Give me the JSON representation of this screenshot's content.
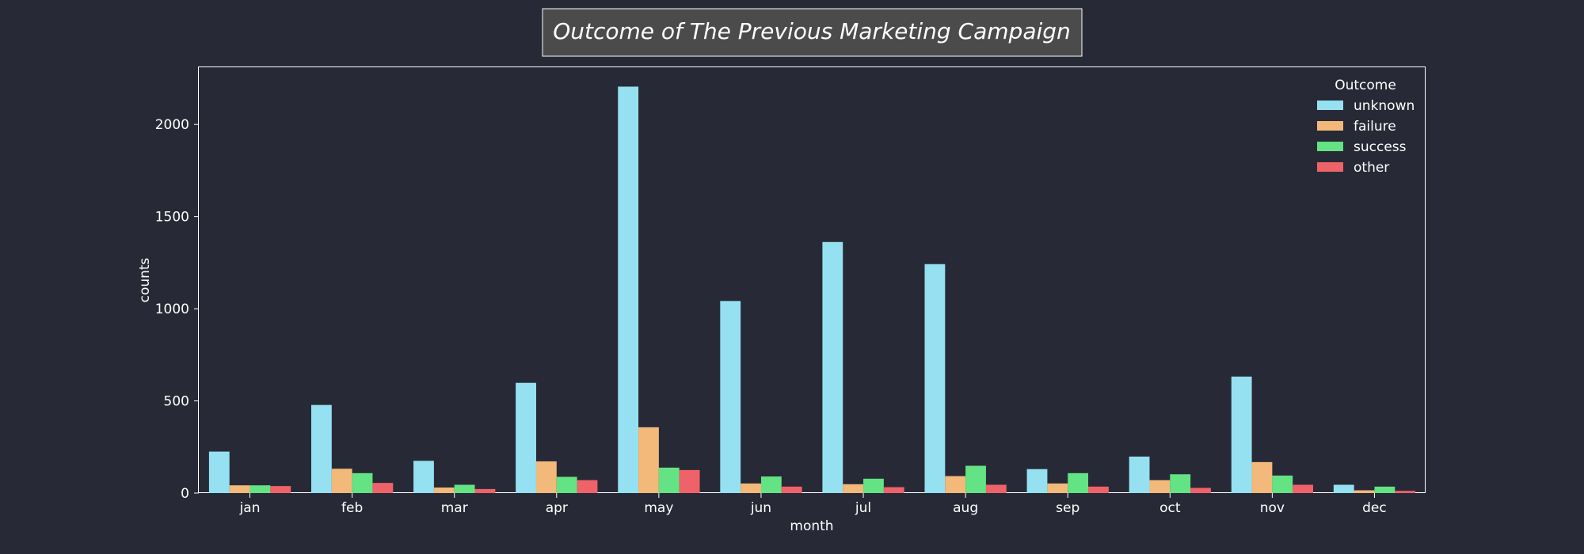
{
  "chart_data": {
    "type": "bar",
    "title": "Outcome of The Previous Marketing Campaign",
    "xlabel": "month",
    "ylabel": "counts",
    "categories": [
      "jan",
      "feb",
      "mar",
      "apr",
      "may",
      "jun",
      "jul",
      "aug",
      "sep",
      "oct",
      "nov",
      "dec"
    ],
    "ylim": [
      0,
      2310
    ],
    "yticks": [
      0,
      500,
      1000,
      1500,
      2000
    ],
    "legend_title": "Outcome",
    "legend_position": "top-right",
    "grid": false,
    "series": [
      {
        "name": "unknown",
        "color": "#95e1f1",
        "values": [
          225,
          478,
          175,
          598,
          2205,
          1042,
          1362,
          1242,
          130,
          198,
          632,
          45
        ]
      },
      {
        "name": "failure",
        "color": "#f2b97a",
        "values": [
          42,
          132,
          30,
          172,
          357,
          52,
          48,
          92,
          52,
          70,
          168,
          15
        ]
      },
      {
        "name": "success",
        "color": "#63e383",
        "values": [
          42,
          108,
          45,
          88,
          138,
          90,
          78,
          148,
          108,
          102,
          95,
          35
        ]
      },
      {
        "name": "other",
        "color": "#f0626a",
        "values": [
          38,
          55,
          22,
          70,
          125,
          35,
          32,
          45,
          35,
          28,
          45,
          12
        ]
      }
    ]
  },
  "style": {
    "background": "#272a36",
    "title_box_fill": "#4b4b4b",
    "axis_color": "#ffffff",
    "text_color": "#ffffff"
  }
}
